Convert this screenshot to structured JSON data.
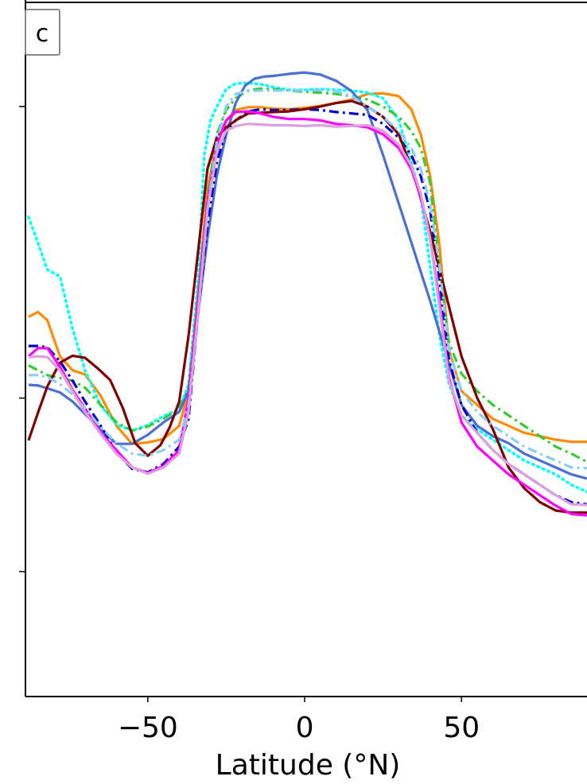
{
  "chart_data": {
    "type": "line",
    "panel_label": "c",
    "xlabel": "Latitude (°N)",
    "ylabel": "",
    "xlim": [
      -89,
      90
    ],
    "ylim": [
      0,
      100
    ],
    "xticks": [
      -50,
      0,
      50
    ],
    "xtick_labels": [
      "−50",
      "0",
      "50"
    ],
    "yticks": [
      18,
      43,
      85
    ],
    "grid": false,
    "series": [
      {
        "color": "#ff8c00",
        "style": "solid",
        "x": [
          -88,
          -85,
          -82,
          -78,
          -74,
          -70,
          -65,
          -60,
          -55,
          -50,
          -45,
          -40,
          -37,
          -34,
          -31,
          -28,
          -25,
          -22,
          -18,
          -14,
          -10,
          -5,
          0,
          5,
          10,
          15,
          20,
          25,
          30,
          34,
          37,
          40,
          43,
          46,
          50,
          55,
          60,
          65,
          70,
          75,
          80,
          85,
          90
        ],
        "y": [
          54.7,
          55.4,
          54.2,
          49.0,
          47.0,
          46.4,
          43.3,
          39.0,
          36.4,
          36.6,
          37.1,
          39.0,
          44.0,
          58.0,
          73.0,
          80.0,
          83.0,
          84.5,
          84.9,
          84.9,
          84.7,
          84.6,
          84.8,
          85.1,
          85.5,
          86.0,
          86.8,
          86.9,
          86.5,
          84.6,
          81.0,
          75.0,
          65.0,
          50.0,
          44.0,
          42.0,
          40.0,
          39.0,
          38.0,
          37.5,
          37.0,
          36.7,
          36.7
        ]
      },
      {
        "color": "#00ffff",
        "style": "dotted",
        "x": [
          -88,
          -85,
          -82,
          -78,
          -74,
          -70,
          -65,
          -60,
          -55,
          -50,
          -45,
          -40,
          -37,
          -34,
          -32,
          -30,
          -28,
          -25,
          -22,
          -18,
          -14,
          -10,
          -5,
          0,
          5,
          10,
          15,
          20,
          25,
          30,
          34,
          37,
          40,
          43,
          46,
          50,
          55,
          60,
          65,
          70,
          75,
          80,
          85,
          90
        ],
        "y": [
          69.1,
          65.3,
          61.5,
          60.5,
          53.0,
          47.0,
          41.9,
          39.2,
          38.3,
          39.1,
          40.4,
          41.4,
          45.0,
          60.0,
          78.0,
          83.0,
          85.0,
          87.5,
          88.3,
          88.4,
          88.2,
          87.8,
          87.4,
          87.4,
          87.5,
          87.4,
          87.3,
          87.0,
          86.2,
          83.0,
          77.0,
          72.0,
          62.0,
          52.0,
          45.0,
          40.5,
          38.5,
          37.0,
          35.5,
          34.0,
          33.0,
          32.0,
          30.5,
          29.5
        ]
      },
      {
        "color": "#32cd32",
        "style": "dashdot",
        "x": [
          -88,
          -85,
          -82,
          -78,
          -74,
          -70,
          -65,
          -60,
          -55,
          -50,
          -45,
          -40,
          -37,
          -34,
          -31,
          -28,
          -25,
          -22,
          -18,
          -14,
          -10,
          -5,
          0,
          5,
          10,
          15,
          20,
          25,
          30,
          34,
          37,
          40,
          43,
          46,
          50,
          55,
          60,
          65,
          70,
          75,
          80,
          85,
          90
        ],
        "y": [
          47.7,
          47.0,
          46.3,
          45.9,
          45.5,
          44.5,
          42.0,
          39.5,
          38.3,
          38.9,
          40.0,
          41.5,
          44.5,
          58.0,
          72.0,
          81.0,
          84.5,
          86.2,
          87.3,
          87.6,
          87.5,
          87.3,
          87.1,
          87.0,
          86.8,
          86.5,
          86.0,
          85.0,
          83.5,
          81.5,
          79.0,
          74.0,
          62.0,
          51.0,
          46.5,
          44.0,
          42.0,
          40.5,
          39.0,
          37.5,
          36.0,
          35.0,
          33.8
        ]
      },
      {
        "color": "#4a6fd6",
        "style": "solid",
        "x": [
          -88,
          -85,
          -82,
          -78,
          -74,
          -70,
          -65,
          -60,
          -55,
          -50,
          -45,
          -40,
          -37,
          -34,
          -31,
          -28,
          -25,
          -22,
          -19,
          -16,
          -13,
          -10,
          -5,
          0,
          5,
          10,
          15,
          20,
          25,
          30,
          35,
          40,
          45,
          50,
          55,
          60,
          65,
          70,
          75,
          80,
          85,
          90
        ],
        "y": [
          44.9,
          44.8,
          44.4,
          43.8,
          42.5,
          40.7,
          38.5,
          36.4,
          36.4,
          37.7,
          39.5,
          41.0,
          44.0,
          55.0,
          66.0,
          75.0,
          81.0,
          85.5,
          88.0,
          89.0,
          89.3,
          89.4,
          89.7,
          89.9,
          89.6,
          88.7,
          87.2,
          84.5,
          78.0,
          71.0,
          64.0,
          57.0,
          49.5,
          42.0,
          39.0,
          37.5,
          36.5,
          35.0,
          34.0,
          33.0,
          32.0,
          31.4
        ]
      },
      {
        "color": "#0000cd",
        "style": "dashdot",
        "x": [
          -88,
          -85,
          -82,
          -78,
          -74,
          -70,
          -65,
          -60,
          -55,
          -50,
          -45,
          -40,
          -37,
          -34,
          -31,
          -28,
          -25,
          -22,
          -18,
          -14,
          -10,
          -5,
          0,
          5,
          10,
          15,
          20,
          25,
          30,
          34,
          37,
          40,
          43,
          46,
          50,
          55,
          60,
          65,
          70,
          75,
          80,
          85,
          90
        ],
        "y": [
          50.5,
          50.5,
          50.3,
          48.3,
          45.5,
          42.5,
          39.0,
          35.2,
          32.8,
          32.3,
          33.5,
          36.0,
          40.0,
          55.0,
          68.0,
          77.0,
          81.5,
          83.0,
          84.3,
          84.6,
          84.5,
          84.5,
          84.6,
          84.5,
          84.2,
          84.0,
          83.8,
          82.5,
          80.5,
          78.0,
          75.0,
          70.0,
          60.0,
          48.5,
          42.0,
          38.0,
          35.5,
          33.5,
          32.0,
          30.5,
          29.0,
          28.0,
          27.7
        ]
      },
      {
        "color": "#800000",
        "style": "solid",
        "x": [
          -88,
          -85,
          -82,
          -78,
          -74,
          -70,
          -66,
          -62,
          -58,
          -54,
          -50,
          -46,
          -43,
          -40,
          -37,
          -34,
          -31,
          -28,
          -25,
          -22,
          -18,
          -14,
          -10,
          -5,
          0,
          5,
          10,
          15,
          20,
          25,
          30,
          35,
          40,
          45,
          50,
          55,
          60,
          65,
          70,
          75,
          80,
          85,
          90
        ],
        "y": [
          36.9,
          40.9,
          44.7,
          48.1,
          49.1,
          48.8,
          47.3,
          45.6,
          41.6,
          36.5,
          34.7,
          36.2,
          38.8,
          42.5,
          52.0,
          64.0,
          76.0,
          80.5,
          82.0,
          83.0,
          84.0,
          84.1,
          84.2,
          84.3,
          84.6,
          85.0,
          85.5,
          85.8,
          85.0,
          83.5,
          81.0,
          75.0,
          67.0,
          58.0,
          49.0,
          43.0,
          38.5,
          33.0,
          30.0,
          28.0,
          26.8,
          26.5,
          26.5
        ]
      },
      {
        "color": "#ff00ff",
        "style": "solid",
        "x": [
          -88,
          -85,
          -82,
          -78,
          -74,
          -70,
          -65,
          -60,
          -55,
          -50,
          -45,
          -40,
          -37,
          -34,
          -31,
          -28,
          -25,
          -22,
          -18,
          -14,
          -10,
          -5,
          0,
          5,
          10,
          15,
          20,
          25,
          30,
          34,
          37,
          40,
          43,
          46,
          50,
          55,
          60,
          65,
          70,
          75,
          80,
          85,
          90
        ],
        "y": [
          49.0,
          50.2,
          50.2,
          47.5,
          44.2,
          41.5,
          38.0,
          35.5,
          33.0,
          32.2,
          33.2,
          35.5,
          43.0,
          57.0,
          71.0,
          79.5,
          83.0,
          84.2,
          84.3,
          84.0,
          83.5,
          83.2,
          83.2,
          83.0,
          82.5,
          82.3,
          82.0,
          81.0,
          79.0,
          76.0,
          72.0,
          66.0,
          57.0,
          46.0,
          39.5,
          36.0,
          34.0,
          32.0,
          30.5,
          29.0,
          27.5,
          26.3,
          26.1
        ]
      },
      {
        "color": "#87cefa",
        "style": "dashdot",
        "x": [
          -88,
          -85,
          -82,
          -78,
          -74,
          -70,
          -65,
          -60,
          -55,
          -50,
          -45,
          -40,
          -37,
          -34,
          -31,
          -28,
          -25,
          -22,
          -18,
          -14,
          -10,
          -5,
          0,
          5,
          10,
          15,
          20,
          25,
          30,
          34,
          37,
          40,
          43,
          46,
          50,
          55,
          60,
          65,
          70,
          75,
          80,
          85,
          90
        ],
        "y": [
          46.3,
          46.3,
          46.0,
          45.0,
          43.5,
          41.5,
          38.8,
          36.5,
          35.0,
          34.7,
          35.5,
          37.0,
          42.0,
          55.0,
          70.0,
          80.0,
          85.0,
          86.8,
          87.2,
          87.3,
          87.3,
          87.3,
          87.3,
          87.4,
          87.2,
          86.5,
          85.0,
          83.5,
          81.5,
          79.0,
          76.0,
          71.0,
          62.0,
          50.0,
          44.0,
          41.0,
          39.0,
          37.5,
          36.0,
          35.0,
          34.0,
          33.0,
          32.9
        ]
      },
      {
        "color": "#dda0dd",
        "style": "solid",
        "x": [
          -88,
          -85,
          -82,
          -78,
          -74,
          -70,
          -65,
          -60,
          -55,
          -50,
          -45,
          -40,
          -37,
          -34,
          -31,
          -28,
          -25,
          -22,
          -18,
          -14,
          -10,
          -5,
          0,
          5,
          10,
          15,
          20,
          25,
          30,
          34,
          37,
          40,
          43,
          46,
          50,
          55,
          60,
          65,
          70,
          75,
          80,
          85,
          90
        ],
        "y": [
          48.9,
          49.0,
          48.9,
          47.0,
          44.0,
          41.0,
          37.8,
          35.0,
          33.0,
          32.1,
          33.0,
          35.0,
          41.0,
          55.0,
          70.0,
          78.5,
          81.5,
          82.2,
          82.5,
          82.4,
          82.3,
          82.3,
          82.2,
          82.3,
          82.1,
          82.2,
          82.3,
          81.5,
          79.5,
          76.5,
          72.5,
          66.0,
          56.0,
          45.5,
          40.5,
          38.0,
          35.5,
          33.5,
          32.0,
          30.5,
          29.0,
          27.7,
          27.6
        ]
      }
    ]
  }
}
